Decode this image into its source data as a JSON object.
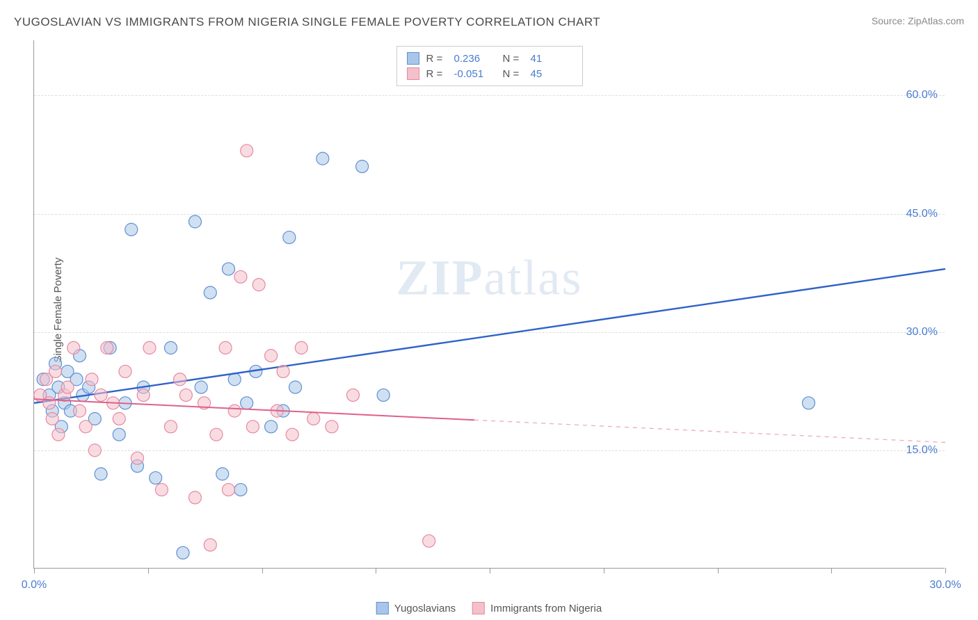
{
  "title": "YUGOSLAVIAN VS IMMIGRANTS FROM NIGERIA SINGLE FEMALE POVERTY CORRELATION CHART",
  "source": "Source: ZipAtlas.com",
  "y_axis_label": "Single Female Poverty",
  "watermark": "ZIPatlas",
  "chart": {
    "type": "scatter",
    "background_color": "#ffffff",
    "grid_color": "#dddddd",
    "axis_color": "#999999",
    "tick_color": "#4a7bd0",
    "xlim": [
      0,
      30
    ],
    "ylim": [
      0,
      67
    ],
    "x_ticks": [
      0,
      3.75,
      7.5,
      11.25,
      15,
      18.75,
      22.5,
      26.25,
      30
    ],
    "x_tick_labels": {
      "0": "0.0%",
      "30": "30.0%"
    },
    "y_ticks": [
      15,
      30,
      45,
      60
    ],
    "y_tick_labels": {
      "15": "15.0%",
      "30": "30.0%",
      "45": "45.0%",
      "60": "60.0%"
    },
    "marker_radius": 9,
    "marker_opacity": 0.55,
    "series": [
      {
        "name": "Yugoslavians",
        "color_fill": "#a9c6ea",
        "color_stroke": "#5f8fd0",
        "R": "0.236",
        "N": "41",
        "trend": {
          "x1": 0,
          "y1": 21,
          "x2": 30,
          "y2": 38,
          "dash_from_x": 30,
          "color": "#2f62c9",
          "width": 2.4
        },
        "points": [
          [
            0.3,
            24
          ],
          [
            0.5,
            22
          ],
          [
            0.6,
            20
          ],
          [
            0.7,
            26
          ],
          [
            0.8,
            23
          ],
          [
            0.9,
            18
          ],
          [
            1.0,
            21
          ],
          [
            1.1,
            25
          ],
          [
            1.2,
            20
          ],
          [
            1.4,
            24
          ],
          [
            1.5,
            27
          ],
          [
            1.6,
            22
          ],
          [
            1.8,
            23
          ],
          [
            2.0,
            19
          ],
          [
            2.2,
            12
          ],
          [
            2.5,
            28
          ],
          [
            2.8,
            17
          ],
          [
            3.0,
            21
          ],
          [
            3.2,
            43
          ],
          [
            3.4,
            13
          ],
          [
            3.6,
            23
          ],
          [
            4.0,
            11.5
          ],
          [
            4.5,
            28
          ],
          [
            4.9,
            2
          ],
          [
            5.3,
            44
          ],
          [
            5.5,
            23
          ],
          [
            5.8,
            35
          ],
          [
            6.2,
            12
          ],
          [
            6.4,
            38
          ],
          [
            6.6,
            24
          ],
          [
            6.8,
            10
          ],
          [
            7.0,
            21
          ],
          [
            7.3,
            25
          ],
          [
            7.8,
            18
          ],
          [
            8.2,
            20
          ],
          [
            8.4,
            42
          ],
          [
            8.6,
            23
          ],
          [
            9.5,
            52
          ],
          [
            10.8,
            51
          ],
          [
            11.5,
            22
          ],
          [
            25.5,
            21
          ]
        ]
      },
      {
        "name": "Immigrants from Nigeria",
        "color_fill": "#f4c0cb",
        "color_stroke": "#e589a0",
        "R": "-0.051",
        "N": "45",
        "trend": {
          "x1": 0,
          "y1": 21.5,
          "x2": 30,
          "y2": 16,
          "dash_from_x": 14.5,
          "color": "#e06088",
          "width": 2.0
        },
        "points": [
          [
            0.2,
            22
          ],
          [
            0.4,
            24
          ],
          [
            0.5,
            21
          ],
          [
            0.6,
            19
          ],
          [
            0.7,
            25
          ],
          [
            0.8,
            17
          ],
          [
            1.0,
            22
          ],
          [
            1.1,
            23
          ],
          [
            1.3,
            28
          ],
          [
            1.5,
            20
          ],
          [
            1.7,
            18
          ],
          [
            1.9,
            24
          ],
          [
            2.0,
            15
          ],
          [
            2.2,
            22
          ],
          [
            2.4,
            28
          ],
          [
            2.6,
            21
          ],
          [
            2.8,
            19
          ],
          [
            3.0,
            25
          ],
          [
            3.4,
            14
          ],
          [
            3.6,
            22
          ],
          [
            3.8,
            28
          ],
          [
            4.2,
            10
          ],
          [
            4.5,
            18
          ],
          [
            4.8,
            24
          ],
          [
            5.0,
            22
          ],
          [
            5.3,
            9
          ],
          [
            5.6,
            21
          ],
          [
            5.8,
            3
          ],
          [
            6.0,
            17
          ],
          [
            6.3,
            28
          ],
          [
            6.4,
            10
          ],
          [
            6.6,
            20
          ],
          [
            6.8,
            37
          ],
          [
            7.0,
            53
          ],
          [
            7.2,
            18
          ],
          [
            7.4,
            36
          ],
          [
            7.8,
            27
          ],
          [
            8.0,
            20
          ],
          [
            8.2,
            25
          ],
          [
            8.5,
            17
          ],
          [
            8.8,
            28
          ],
          [
            9.2,
            19
          ],
          [
            9.8,
            18
          ],
          [
            10.5,
            22
          ],
          [
            13.0,
            3.5
          ]
        ]
      }
    ],
    "legend_top": {
      "border": "#cccccc",
      "R_label": "R =",
      "N_label": "N ="
    }
  }
}
